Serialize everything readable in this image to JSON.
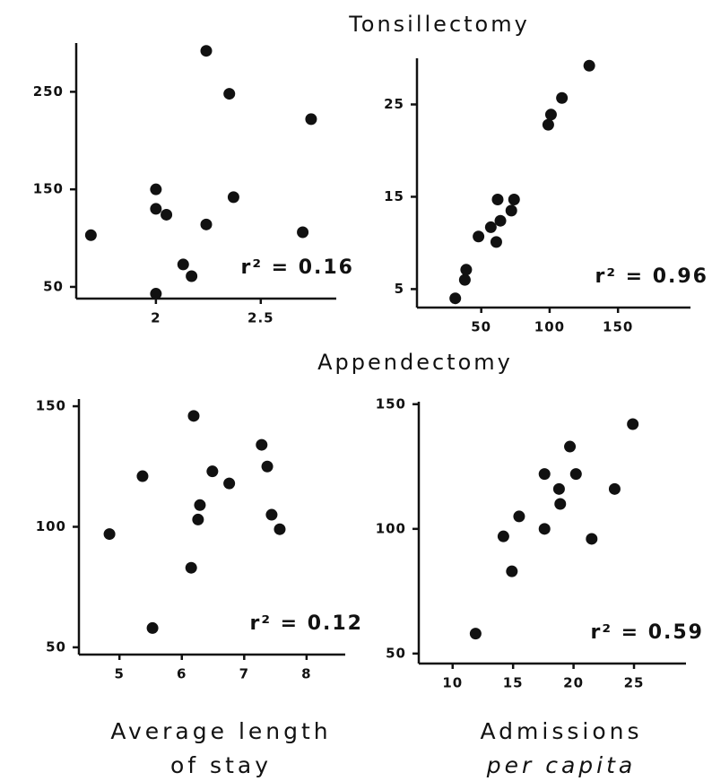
{
  "headings": [
    "Tonsillectomy",
    "Appendectomy"
  ],
  "chart_data": [
    {
      "type": "scatter",
      "color": "#111111",
      "x": [
        1.69,
        2.0,
        2.0,
        2.0,
        2.05,
        2.13,
        2.17,
        2.24,
        2.24,
        2.35,
        2.37,
        2.7,
        2.74
      ],
      "values": [
        103,
        43,
        150,
        130,
        124,
        73,
        61,
        114,
        292,
        248,
        142,
        106,
        222
      ],
      "xlim": [
        1.62,
        2.86
      ],
      "xticks": [
        2,
        2.5
      ],
      "ylim": [
        38,
        300
      ],
      "yticks": [
        50,
        150,
        250
      ],
      "annotation": "r² = 0.16"
    },
    {
      "type": "scatter",
      "color": "#111111",
      "x": [
        31,
        38,
        39,
        48,
        57,
        64,
        61,
        62,
        72,
        74,
        99,
        101,
        109,
        129
      ],
      "values": [
        4.0,
        6.0,
        7.1,
        10.7,
        11.7,
        12.4,
        10.1,
        14.7,
        13.5,
        14.7,
        22.8,
        23.9,
        25.7,
        29.2
      ],
      "xlim": [
        3,
        203
      ],
      "xticks": [
        50,
        100,
        150
      ],
      "ylim": [
        3,
        30
      ],
      "yticks": [
        5,
        15,
        25
      ],
      "annotation": "r² = 0.96"
    },
    {
      "type": "scatter",
      "color": "#111111",
      "x": [
        4.84,
        5.37,
        5.53,
        6.15,
        6.19,
        6.29,
        6.26,
        6.49,
        6.76,
        7.28,
        7.37,
        7.44,
        7.57
      ],
      "values": [
        97,
        121,
        58,
        83,
        146,
        109,
        103,
        123,
        118,
        134,
        125,
        105,
        99
      ],
      "xlim": [
        4.35,
        8.62
      ],
      "xticks": [
        5,
        6,
        7,
        8
      ],
      "ylim": [
        47,
        153
      ],
      "yticks": [
        50,
        100,
        150
      ],
      "annotation": "r² = 0.12",
      "xlabel": [
        "Average length",
        "of stay"
      ]
    },
    {
      "type": "scatter",
      "color": "#111111",
      "x": [
        11.9,
        14.2,
        14.9,
        15.5,
        17.6,
        17.6,
        18.8,
        18.9,
        19.7,
        20.2,
        21.5,
        23.4,
        24.9
      ],
      "values": [
        58,
        97,
        83,
        105,
        100,
        122,
        116,
        110,
        133,
        122,
        96,
        116,
        142
      ],
      "xlim": [
        7.2,
        29.3
      ],
      "xticks": [
        10,
        15,
        20,
        25
      ],
      "ylim": [
        46,
        151
      ],
      "yticks": [
        50,
        100,
        150
      ],
      "annotation": "r² = 0.59",
      "xlabel": [
        "Admissions",
        "per capita"
      ]
    }
  ]
}
